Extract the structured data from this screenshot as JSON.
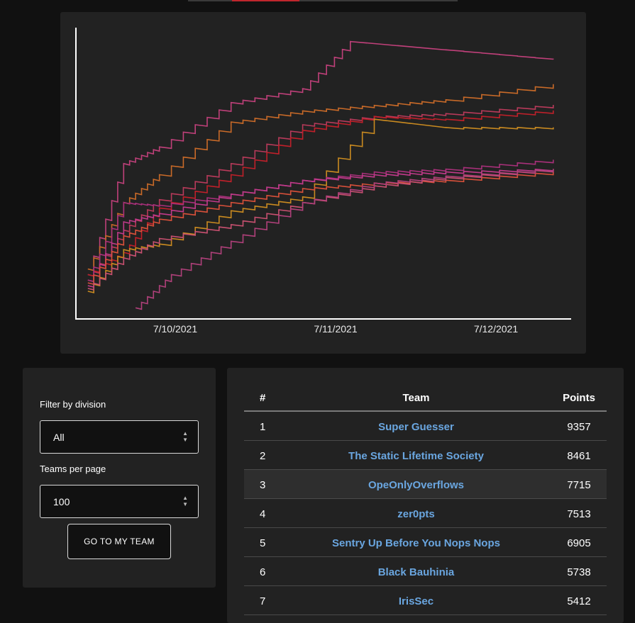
{
  "graph": {
    "x_tick_labels": [
      "7/10/2021",
      "7/11/2021",
      "7/12/2021"
    ]
  },
  "chart_data": {
    "type": "line",
    "x_axis_labels": [
      "7/10/2021",
      "7/11/2021",
      "7/12/2021"
    ],
    "grid": false,
    "legend": "none",
    "series": [
      {
        "color": "#c0407a",
        "points": [
          [
            "7/09/2021 12:00",
            1600
          ],
          [
            "7/09/2021 18:00",
            5600
          ],
          [
            "7/10/2021 00:00",
            6200
          ],
          [
            "7/10/2021 12:00",
            7800
          ],
          [
            "7/11/2021 00:00",
            8300
          ],
          [
            "7/11/2021 08:00",
            10000
          ],
          [
            "7/12/2021 00:00",
            9700
          ],
          [
            "7/12/2021 18:00",
            9357
          ]
        ]
      },
      {
        "color": "#c96a28",
        "points": [
          [
            "7/09/2021 12:00",
            1800
          ],
          [
            "7/09/2021 18:00",
            4200
          ],
          [
            "7/10/2021 00:00",
            5200
          ],
          [
            "7/10/2021 12:00",
            7100
          ],
          [
            "7/11/2021 00:00",
            7500
          ],
          [
            "7/11/2021 12:00",
            7700
          ],
          [
            "7/12/2021 00:00",
            7900
          ],
          [
            "7/12/2021 18:00",
            8461
          ]
        ]
      },
      {
        "color": "#b83a5a",
        "points": [
          [
            "7/09/2021 12:00",
            1400
          ],
          [
            "7/09/2021 18:00",
            3200
          ],
          [
            "7/10/2021 00:00",
            4300
          ],
          [
            "7/10/2021 12:00",
            5600
          ],
          [
            "7/11/2021 00:00",
            7000
          ],
          [
            "7/11/2021 12:00",
            7300
          ],
          [
            "7/12/2021 00:00",
            7400
          ],
          [
            "7/12/2021 18:00",
            7715
          ]
        ]
      },
      {
        "color": "#c0202a",
        "points": [
          [
            "7/09/2021 12:00",
            1600
          ],
          [
            "7/09/2021 18:00",
            2400
          ],
          [
            "7/10/2021 00:00",
            4000
          ],
          [
            "7/10/2021 12:00",
            5200
          ],
          [
            "7/11/2021 00:00",
            6800
          ],
          [
            "7/11/2021 12:00",
            7300
          ],
          [
            "7/12/2021 00:00",
            7200
          ],
          [
            "7/12/2021 18:00",
            7513
          ]
        ]
      },
      {
        "color": "#c98a20",
        "points": [
          [
            "7/09/2021 12:00",
            1000
          ],
          [
            "7/09/2021 18:00",
            2500
          ],
          [
            "7/10/2021 00:00",
            2700
          ],
          [
            "7/10/2021 12:00",
            3900
          ],
          [
            "7/11/2021 00:00",
            4400
          ],
          [
            "7/11/2021 12:00",
            7200
          ],
          [
            "7/12/2021 00:00",
            6900
          ],
          [
            "7/12/2021 18:00",
            6905
          ]
        ]
      },
      {
        "color": "#a8307a",
        "points": [
          [
            "7/09/2021 12:00",
            1400
          ],
          [
            "7/09/2021 18:00",
            4200
          ],
          [
            "7/10/2021 00:00",
            4100
          ],
          [
            "7/10/2021 12:00",
            4500
          ],
          [
            "7/11/2021 00:00",
            5000
          ],
          [
            "7/11/2021 12:00",
            5300
          ],
          [
            "7/12/2021 00:00",
            5400
          ],
          [
            "7/12/2021 18:00",
            5738
          ]
        ]
      },
      {
        "color": "#c03a8a",
        "points": [
          [
            "7/09/2021 12:00",
            1200
          ],
          [
            "7/09/2021 18:00",
            3500
          ],
          [
            "7/10/2021 00:00",
            3800
          ],
          [
            "7/10/2021 12:00",
            4500
          ],
          [
            "7/11/2021 00:00",
            5000
          ],
          [
            "7/11/2021 12:00",
            5200
          ],
          [
            "7/12/2021 00:00",
            5300
          ],
          [
            "7/12/2021 18:00",
            5412
          ]
        ]
      },
      {
        "color": "#d8503a",
        "points": [
          [
            "7/09/2021 12:00",
            1300
          ],
          [
            "7/09/2021 18:00",
            3000
          ],
          [
            "7/10/2021 00:00",
            3600
          ],
          [
            "7/10/2021 12:00",
            4200
          ],
          [
            "7/11/2021 00:00",
            4700
          ],
          [
            "7/11/2021 12:00",
            4900
          ],
          [
            "7/12/2021 00:00",
            5000
          ],
          [
            "7/12/2021 18:00",
            5300
          ]
        ]
      },
      {
        "color": "#c85070",
        "points": [
          [
            "7/09/2021 12:00",
            1100
          ],
          [
            "7/09/2021 18:00",
            2200
          ],
          [
            "7/10/2021 00:00",
            2900
          ],
          [
            "7/10/2021 12:00",
            3400
          ],
          [
            "7/11/2021 00:00",
            4200
          ],
          [
            "7/11/2021 12:00",
            4800
          ],
          [
            "7/12/2021 00:00",
            5100
          ],
          [
            "7/12/2021 18:00",
            5400
          ]
        ]
      },
      {
        "color": "#b0407a",
        "points": [
          [
            "7/09/2021 20:00",
            400
          ],
          [
            "7/10/2021 02:00",
            1600
          ],
          [
            "7/10/2021 12:00",
            2800
          ],
          [
            "7/11/2021 00:00",
            4200
          ],
          [
            "7/11/2021 12:00",
            4900
          ],
          [
            "7/12/2021 00:00",
            5150
          ],
          [
            "7/12/2021 18:00",
            5400
          ]
        ]
      }
    ]
  },
  "filters": {
    "division_label": "Filter by division",
    "division_value": "All",
    "per_page_label": "Teams per page",
    "per_page_value": "100",
    "goto_button": "GO TO MY TEAM"
  },
  "table": {
    "headers": {
      "rank": "#",
      "team": "Team",
      "points": "Points"
    },
    "rows": [
      {
        "rank": "1",
        "team": "Super Guesser",
        "points": "9357"
      },
      {
        "rank": "2",
        "team": "The Static Lifetime Society",
        "points": "8461"
      },
      {
        "rank": "3",
        "team": "OpeOnlyOverflows",
        "points": "7715"
      },
      {
        "rank": "4",
        "team": "zer0pts",
        "points": "7513"
      },
      {
        "rank": "5",
        "team": "Sentry Up Before You Nops Nops",
        "points": "6905"
      },
      {
        "rank": "6",
        "team": "Black Bauhinia",
        "points": "5738"
      },
      {
        "rank": "7",
        "team": "IrisSec",
        "points": "5412"
      }
    ]
  },
  "colors": {
    "background": "#111111",
    "card": "#222222",
    "link": "#6aa6e0",
    "accent": "#c0262d"
  }
}
